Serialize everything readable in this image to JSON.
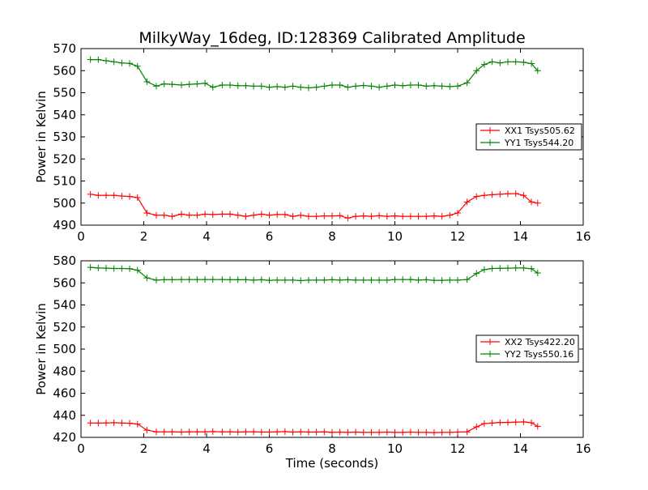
{
  "title": "MilkyWay_16deg, ID:128369 Calibrated Amplitude",
  "chart_data": [
    {
      "type": "line",
      "ylabel": "Power in Kelvin",
      "xlabel": "",
      "xlim": [
        0,
        16
      ],
      "ylim": [
        490,
        570
      ],
      "xticks": [
        "0",
        "2",
        "4",
        "6",
        "8",
        "10",
        "12",
        "14",
        "16"
      ],
      "yticks": [
        "490",
        "500",
        "510",
        "520",
        "530",
        "540",
        "550",
        "560",
        "570"
      ],
      "grid": false,
      "legend_position": "right",
      "x": [
        0.3,
        0.55,
        0.8,
        1.05,
        1.3,
        1.55,
        1.8,
        2.1,
        2.4,
        2.65,
        2.9,
        3.2,
        3.45,
        3.7,
        3.95,
        4.2,
        4.5,
        4.75,
        5.0,
        5.25,
        5.5,
        5.75,
        6.0,
        6.25,
        6.5,
        6.75,
        7.0,
        7.25,
        7.5,
        7.75,
        8.0,
        8.25,
        8.5,
        8.75,
        9.0,
        9.25,
        9.5,
        9.75,
        10.0,
        10.25,
        10.5,
        10.75,
        11.0,
        11.25,
        11.5,
        11.75,
        12.0,
        12.3,
        12.6,
        12.85,
        13.1,
        13.35,
        13.6,
        13.85,
        14.1,
        14.35,
        14.55
      ],
      "series": [
        {
          "name": "XX1 Tsys505.62",
          "color": "#ff0000",
          "values": [
            504,
            503.5,
            503.5,
            503.5,
            503.2,
            503,
            502.5,
            495.5,
            494.5,
            494.5,
            494,
            495,
            494.5,
            494.5,
            495,
            494.8,
            495,
            495,
            494.5,
            494,
            494.5,
            495,
            494.5,
            494.8,
            494.8,
            494,
            494.5,
            494,
            494,
            494.2,
            494.2,
            494.3,
            493.2,
            494,
            494.2,
            494,
            494.3,
            494,
            494.2,
            494,
            494,
            494,
            494,
            494.2,
            494,
            494.5,
            495.5,
            500.5,
            503,
            503.5,
            503.8,
            504,
            504.2,
            504.3,
            503.5,
            500.5,
            500
          ]
        },
        {
          "name": "YY1 Tsys544.20",
          "color": "#008000",
          "values": [
            565,
            565,
            564.5,
            564,
            563.5,
            563.3,
            562,
            555,
            553,
            554,
            553.8,
            553.5,
            553.8,
            554,
            554.3,
            552.5,
            553.5,
            553.5,
            553.2,
            553.2,
            553,
            553,
            552.5,
            552.8,
            552.5,
            553,
            552.5,
            552.2,
            552.5,
            553,
            553.5,
            553.5,
            552.5,
            553,
            553.3,
            553,
            552.5,
            553,
            553.5,
            553.2,
            553.5,
            553.5,
            553,
            553.2,
            553,
            552.8,
            553,
            554.5,
            560,
            562.8,
            564,
            563.5,
            564,
            564,
            563.8,
            563.2,
            560
          ]
        }
      ]
    },
    {
      "type": "line",
      "ylabel": "Power in Kelvin",
      "xlabel": "Time (seconds)",
      "xlim": [
        0,
        16
      ],
      "ylim": [
        420,
        580
      ],
      "xticks": [
        "0",
        "2",
        "4",
        "6",
        "8",
        "10",
        "12",
        "14",
        "16"
      ],
      "yticks": [
        "420",
        "440",
        "460",
        "480",
        "500",
        "520",
        "540",
        "560",
        "580"
      ],
      "grid": false,
      "legend_position": "right",
      "x": [
        0.3,
        0.55,
        0.8,
        1.05,
        1.3,
        1.55,
        1.8,
        2.1,
        2.4,
        2.65,
        2.9,
        3.2,
        3.45,
        3.7,
        3.95,
        4.2,
        4.5,
        4.75,
        5.0,
        5.25,
        5.5,
        5.75,
        6.0,
        6.25,
        6.5,
        6.75,
        7.0,
        7.25,
        7.5,
        7.75,
        8.0,
        8.25,
        8.5,
        8.75,
        9.0,
        9.25,
        9.5,
        9.75,
        10.0,
        10.25,
        10.5,
        10.75,
        11.0,
        11.25,
        11.5,
        11.75,
        12.0,
        12.3,
        12.6,
        12.85,
        13.1,
        13.35,
        13.6,
        13.85,
        14.1,
        14.35,
        14.55
      ],
      "series": [
        {
          "name": "XX2 Tsys422.20",
          "color": "#ff0000",
          "values": [
            433,
            433,
            433,
            433.3,
            433,
            432.8,
            432,
            426.5,
            425,
            425,
            425,
            424.8,
            425,
            425,
            425,
            425.2,
            425,
            425,
            424.8,
            425,
            425,
            424.8,
            424.8,
            425,
            425.2,
            424.8,
            425,
            424.8,
            424.8,
            425,
            424.5,
            424.8,
            424.5,
            424.8,
            424.5,
            424.5,
            424.5,
            424.8,
            424.5,
            424.5,
            424.8,
            424.5,
            424.5,
            424.3,
            424.5,
            424.5,
            424.8,
            425,
            429.5,
            432.5,
            433,
            433.5,
            433.5,
            433.8,
            434,
            433.2,
            430
          ]
        },
        {
          "name": "YY2 Tsys550.16",
          "color": "#008000",
          "values": [
            574,
            573.5,
            573.3,
            573,
            573,
            572.8,
            571.5,
            564.5,
            562.5,
            562.8,
            562.8,
            563,
            563,
            563,
            563,
            563,
            563,
            562.8,
            562.8,
            562.8,
            562.5,
            562.8,
            562.3,
            562.5,
            562.5,
            562.5,
            562,
            562.5,
            562.5,
            562.5,
            562.8,
            562.5,
            562.8,
            562.5,
            562.5,
            562.5,
            562.5,
            562.5,
            563,
            563,
            563,
            562.5,
            562.8,
            562.3,
            562.3,
            562.5,
            562.5,
            563,
            568.5,
            572,
            573,
            573.2,
            573.3,
            573.5,
            573.5,
            572.8,
            569
          ]
        }
      ]
    }
  ]
}
